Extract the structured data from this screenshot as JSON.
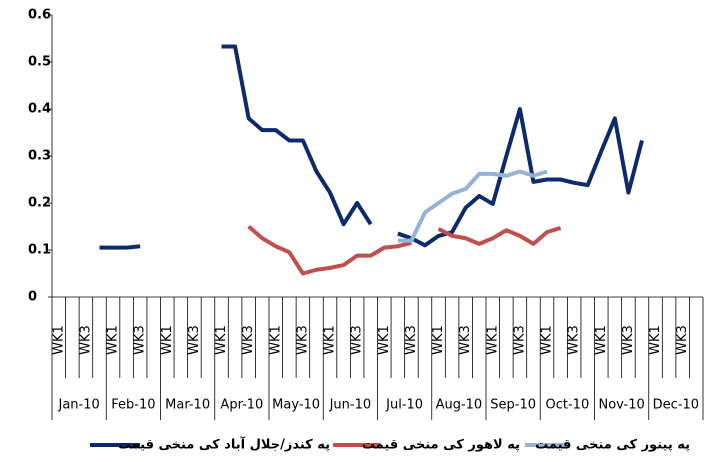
{
  "chart_data": {
    "type": "line",
    "categories": [
      "WK1",
      null,
      "WK3",
      null,
      "WK1",
      null,
      "WK3",
      null,
      "WK1",
      null,
      "WK3",
      null,
      "WK1",
      null,
      "WK3",
      null,
      "WK1",
      null,
      "WK3",
      null,
      "WK1",
      null,
      "WK3",
      null,
      "WK1",
      null,
      "WK3",
      null,
      "WK1",
      null,
      "WK3",
      null,
      "WK1",
      null,
      "WK3",
      null,
      "WK1",
      null,
      "WK3",
      null,
      "WK1",
      null,
      "WK3",
      null,
      "WK1",
      null,
      "WK3",
      null
    ],
    "groups": [
      "Jan-10",
      "Feb-10",
      "Mar-10",
      "Apr-10",
      "May-10",
      "Jun-10",
      "Jul-10",
      "Aug-10",
      "Sep-10",
      "Oct-10",
      "Nov-10",
      "Dec-10"
    ],
    "series": [
      {
        "name": "په کندز/جلال آباد کی منخی قیمت",
        "color": "#0d2a6b",
        "values": [
          null,
          null,
          null,
          0.105,
          0.105,
          0.105,
          0.108,
          null,
          null,
          null,
          null,
          null,
          0.533,
          0.533,
          0.38,
          0.355,
          0.355,
          0.333,
          0.333,
          0.267,
          0.222,
          0.155,
          0.2,
          0.155,
          null,
          0.135,
          0.125,
          0.11,
          0.13,
          0.138,
          0.19,
          0.215,
          0.198,
          0.3,
          0.4,
          0.245,
          0.25,
          0.25,
          0.243,
          0.238,
          0.31,
          0.38,
          0.222,
          0.333,
          null,
          null,
          null,
          null
        ]
      },
      {
        "name": "په لاهور کی منخی قیمت",
        "color": "#c0504d",
        "values": [
          null,
          null,
          null,
          null,
          null,
          null,
          null,
          null,
          null,
          null,
          null,
          null,
          null,
          null,
          0.15,
          0.125,
          0.108,
          0.095,
          0.05,
          0.058,
          0.062,
          0.068,
          0.088,
          0.088,
          0.105,
          0.108,
          0.115,
          null,
          0.145,
          0.13,
          0.125,
          0.113,
          0.125,
          0.142,
          0.13,
          0.113,
          0.138,
          0.147,
          null,
          null,
          null,
          null,
          null,
          null,
          null,
          null,
          null,
          null
        ]
      },
      {
        "name": "په پینور کی منخی قیمت",
        "color": "#95b3d7",
        "values": [
          null,
          null,
          null,
          null,
          null,
          null,
          null,
          null,
          null,
          null,
          null,
          null,
          null,
          null,
          null,
          null,
          null,
          null,
          null,
          null,
          null,
          null,
          null,
          null,
          null,
          0.12,
          0.12,
          0.18,
          0.2,
          0.22,
          0.23,
          0.262,
          0.262,
          0.258,
          0.267,
          0.258,
          0.267,
          null,
          null,
          null,
          null,
          null,
          null,
          null,
          null,
          null,
          null,
          null
        ]
      }
    ],
    "ylim": [
      0,
      0.6
    ],
    "yticks": [
      0,
      0.1,
      0.2,
      0.3,
      0.4,
      0.5,
      0.6
    ],
    "legend": "bottom"
  }
}
